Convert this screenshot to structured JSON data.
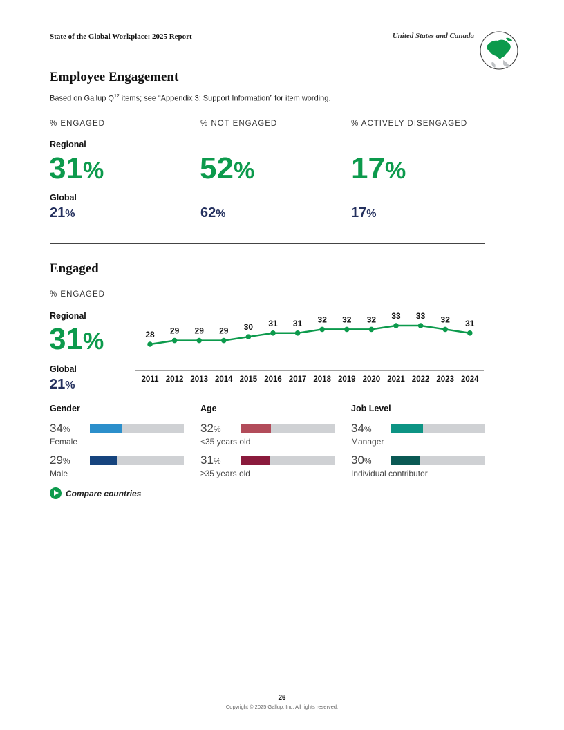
{
  "header": {
    "report_title": "State of the Global Workplace: 2025 Report",
    "region": "United States and Canada",
    "globe_icon": "globe-north-america-icon"
  },
  "employee_engagement": {
    "title": "Employee Engagement",
    "note_prefix": "Based on Gallup Q",
    "note_sup": "12",
    "note_suffix": " items; see “Appendix 3: Support Information” for item wording.",
    "regional_label": "Regional",
    "global_label": "Global",
    "pct_sign": "%",
    "columns": [
      {
        "label": "% ENGAGED",
        "regional": "31",
        "global": "21"
      },
      {
        "label": "% NOT ENGAGED",
        "regional": "52",
        "global": "62"
      },
      {
        "label": "% ACTIVELY DISENGAGED",
        "regional": "17",
        "global": "17"
      }
    ]
  },
  "engaged": {
    "title": "Engaged",
    "sublabel": "% ENGAGED",
    "regional_label": "Regional",
    "regional_value": "31",
    "global_label": "Global",
    "global_value": "21",
    "pct_sign": "%"
  },
  "chart_data": {
    "type": "line",
    "x": [
      "2011",
      "2012",
      "2013",
      "2014",
      "2015",
      "2016",
      "2017",
      "2018",
      "2019",
      "2020",
      "2021",
      "2022",
      "2023",
      "2024"
    ],
    "series": [
      {
        "values": [
          28,
          29,
          29,
          29,
          30,
          31,
          31,
          32,
          32,
          32,
          33,
          33,
          32,
          31
        ],
        "color": "#0c9a4c"
      }
    ],
    "title": "",
    "xlabel": "",
    "ylabel": "",
    "ylim": [
      20,
      36
    ],
    "grid": false,
    "data_labels": true
  },
  "breakdowns": [
    {
      "title": "Gender",
      "items": [
        {
          "value": 34,
          "label": "Female",
          "color": "#2b8fcb"
        },
        {
          "value": 29,
          "label": "Male",
          "color": "#16447e"
        }
      ]
    },
    {
      "title": "Age",
      "items": [
        {
          "value": 32,
          "label": "<35 years old",
          "color": "#b24c5a"
        },
        {
          "value": 31,
          "label": "≥35 years old",
          "color": "#8a1a3c"
        }
      ]
    },
    {
      "title": "Job Level",
      "items": [
        {
          "value": 34,
          "label": "Manager",
          "color": "#0d9484"
        },
        {
          "value": 30,
          "label": "Individual contributor",
          "color": "#0a5954"
        }
      ]
    }
  ],
  "compare": {
    "label": "Compare countries",
    "icon": "play-circle-icon"
  },
  "footer": {
    "page_number": "26",
    "copyright": "Copyright © 2025 Gallup, Inc. All rights reserved."
  }
}
